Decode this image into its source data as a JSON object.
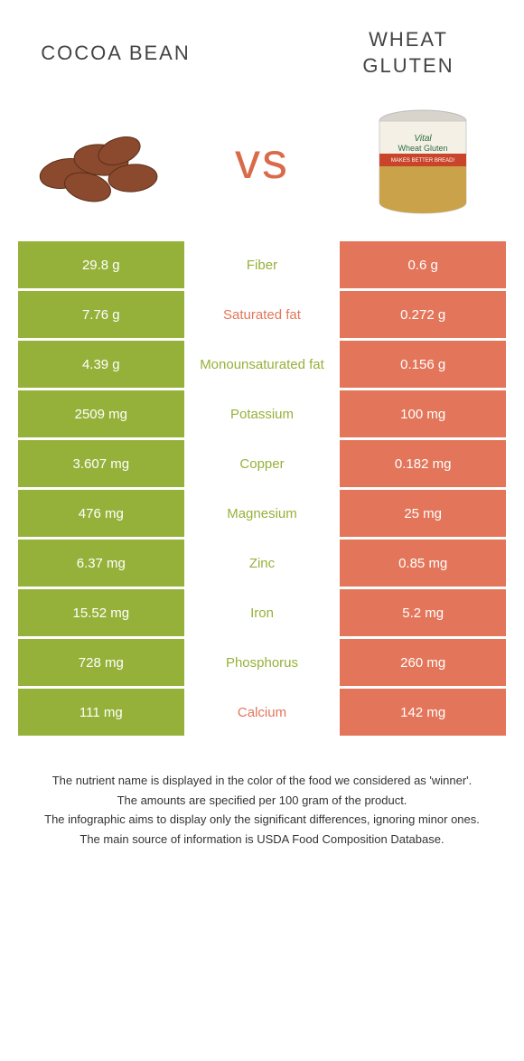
{
  "titles": {
    "left": "Cocoa bean",
    "right_line1": "Wheat",
    "right_line2": "gluten"
  },
  "vs_label": "vs",
  "colors": {
    "left_bg": "#96b13a",
    "right_bg": "#e3765a",
    "left_text": "#96b13a",
    "right_text": "#e3765a",
    "row_gap": "#ffffff"
  },
  "rows": [
    {
      "left": "29.8 g",
      "label": "Fiber",
      "right": "0.6 g",
      "winner": "left"
    },
    {
      "left": "7.76 g",
      "label": "Saturated fat",
      "right": "0.272 g",
      "winner": "right"
    },
    {
      "left": "4.39 g",
      "label": "Monounsaturated fat",
      "right": "0.156 g",
      "winner": "left"
    },
    {
      "left": "2509 mg",
      "label": "Potassium",
      "right": "100 mg",
      "winner": "left"
    },
    {
      "left": "3.607 mg",
      "label": "Copper",
      "right": "0.182 mg",
      "winner": "left"
    },
    {
      "left": "476 mg",
      "label": "Magnesium",
      "right": "25 mg",
      "winner": "left"
    },
    {
      "left": "6.37 mg",
      "label": "Zinc",
      "right": "0.85 mg",
      "winner": "left"
    },
    {
      "left": "15.52 mg",
      "label": "Iron",
      "right": "5.2 mg",
      "winner": "left"
    },
    {
      "left": "728 mg",
      "label": "Phosphorus",
      "right": "260 mg",
      "winner": "left"
    },
    {
      "left": "111 mg",
      "label": "Calcium",
      "right": "142 mg",
      "winner": "right"
    }
  ],
  "footer": [
    "The nutrient name is displayed in the color of the food we considered as 'winner'.",
    "The amounts are specified per 100 gram of the product.",
    "The infographic aims to display only the significant differences, ignoring minor ones.",
    "The main source of information is USDA Food Composition Database."
  ]
}
